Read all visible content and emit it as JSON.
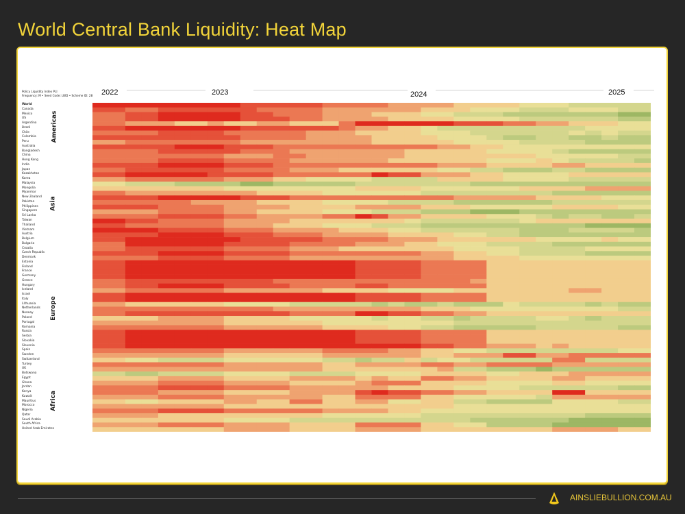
{
  "title": "World Central Bank Liquidity: Heat Map",
  "brand": "AINSLIEBULLION.COM.AU",
  "chart_data": {
    "type": "heatmap",
    "title": "World Central Bank Liquidity: Heat Map",
    "header_lines": [
      "Policy Liquidity Index PLI",
      "Frequency: M • Seed Code: LWD • Scheme ID: 28"
    ],
    "x_tick_labels": [
      "2022",
      "2023",
      "2024",
      "2025"
    ],
    "regions": [
      "Americas",
      "Asia",
      "Europe",
      "Africa"
    ],
    "color_scale": {
      "low": "#df2a1e",
      "mid": "#f4e49c",
      "high": "#7ea44a",
      "levels": "0 (red) to 9 (green)"
    },
    "rows": [
      {
        "label": "World",
        "v": "0000000001111122223333444455566666"
      },
      {
        "label": "Canada",
        "v": "1122111111222233333344455566655566"
      },
      {
        "label": "Mexico",
        "v": "2211000001122233344455666777777788"
      },
      {
        "label": "US",
        "v": "2211000001112233334444555566666677"
      },
      {
        "label": "Argentina",
        "v": "2233344344334442000000111223344455"
      },
      {
        "label": "Brazil",
        "v": "1100000001111112334456666666665555"
      },
      {
        "label": "Chile",
        "v": "2222111122222333444455566666656566"
      },
      {
        "label": "Colombia",
        "v": "1111111112222333344445556776677677"
      },
      {
        "label": "Peru",
        "v": "3322222223333333344444555566667777"
      },
      {
        "label": "Australia",
        "v": "1111100011122222222223344555555555"
      },
      {
        "label": "Bangladesh",
        "v": "2222111112223333333444445555677777"
      },
      {
        "label": "China",
        "v": "2222222233322333333444444445555566"
      },
      {
        "label": "Hong Kong",
        "v": "2222111122223333334444445554566667"
      },
      {
        "label": "India",
        "v": "1111000011122222222223334444334444"
      },
      {
        "label": "Japan",
        "v": "2211111122223334444445566777667777"
      },
      {
        "label": "Kazakhstan",
        "v": "1100000111122222201133344555544444"
      },
      {
        "label": "Korea",
        "v": "3322222233344555566664444555566666"
      },
      {
        "label": "Malaysia",
        "v": "5566677778877777666666677777777777"
      },
      {
        "label": "Mongolia",
        "v": "4444444455555555444455555544443333"
      },
      {
        "label": "Myanmar",
        "v": "2233333333444455555566666666777777"
      },
      {
        "label": "New Zealand",
        "v": "1111000001112222222222333334444555"
      },
      {
        "label": "Pakistan",
        "v": "2222223333444455556666777777666666"
      },
      {
        "label": "Philippines",
        "v": "1111222233334444333344455555444455"
      },
      {
        "label": "Singapore",
        "v": "3333222233444455566677788877777777"
      },
      {
        "label": "Sri Lanka",
        "v": "2222111122333322013344445556766776"
      },
      {
        "label": "Taiwan",
        "v": "0011222233334444444566666654444444"
      },
      {
        "label": "Thailand",
        "v": "1122222233344455566677777777778888"
      },
      {
        "label": "Vietnam",
        "v": "0000111122233334445566666677766667"
      },
      {
        "label": "Austria",
        "v": "1111000011122233334444556677777777"
      },
      {
        "label": "Belgium",
        "v": "1100000001111122223334444445555455"
      },
      {
        "label": "Bulgaria",
        "v": "2200000011112222333445556666777777"
      },
      {
        "label": "Croatia",
        "v": "2211111122223334444444555566665555"
      },
      {
        "label": "Czech Republic",
        "v": "1111000011112222222233445566667777"
      },
      {
        "label": "Denmark",
        "v": "2222111122223333333333444455555555"
      },
      {
        "label": "Estonia",
        "v": "1100000000000000111122224444444444"
      },
      {
        "label": "Finland",
        "v": "1100000000000000111122224444444444"
      },
      {
        "label": "France",
        "v": "1100000000000000111122224444444444"
      },
      {
        "label": "Germany",
        "v": "1100000000000000111122224444444444"
      },
      {
        "label": "Greece",
        "v": "2211111111122222222222234444444444"
      },
      {
        "label": "Hungary",
        "v": "2211000011112222112222224444444444"
      },
      {
        "label": "Iceland",
        "v": "3322222233333344445555444444433444"
      },
      {
        "label": "Israel",
        "v": "1100000000000000111122224444444444"
      },
      {
        "label": "Italy",
        "v": "1100000000000000111122224444444444"
      },
      {
        "label": "Lithuania",
        "v": "3344444455556666676776777566667677"
      },
      {
        "label": "Netherlands",
        "v": "2222222222233333333344455555555566"
      },
      {
        "label": "Norway",
        "v": "2211111111112222001122334444444444"
      },
      {
        "label": "Poland",
        "v": "4444333344445555565566766665567666"
      },
      {
        "label": "Portugal",
        "v": "3333333344444455555555666666666666"
      },
      {
        "label": "Romania",
        "v": "2222222233333344445566777776666677"
      },
      {
        "label": "Russia",
        "v": "1100000000000000111122224444444444"
      },
      {
        "label": "Serbia",
        "v": "1100000000000000111122224444444444"
      },
      {
        "label": "Slovakia",
        "v": "1100000000000000111122224444444444"
      },
      {
        "label": "Slovenia",
        "v": "1100000000000000000011223334344444"
      },
      {
        "label": "Spain",
        "v": "2222222233333322223344556666666655"
      },
      {
        "label": "Sweden",
        "v": "3333333344444433333344333113322222"
      },
      {
        "label": "Switzerland",
        "v": "4455666655555566766465566666226666"
      },
      {
        "label": "Turkey",
        "v": "2222222233333344333322332222333333"
      },
      {
        "label": "UK",
        "v": "3333333333333344444443667778777777"
      },
      {
        "label": "Botswana",
        "v": "6677666655556666555544445544433333"
      },
      {
        "label": "Egypt",
        "v": "4444333344443333434422334444334444"
      },
      {
        "label": "Ghana",
        "v": "3333222233334444322244445555445555"
      },
      {
        "label": "Jordan",
        "v": "2222111122223333334444555566666677"
      },
      {
        "label": "Kenya",
        "v": "2222333344443333101122334444004444"
      },
      {
        "label": "Kuwait",
        "v": "3333222233333344222244555556333333"
      },
      {
        "label": "Mauritius",
        "v": "4455444433442244335544667777555566"
      },
      {
        "label": "Morocco",
        "v": "3333333344444444444444555555555555"
      },
      {
        "label": "Nigeria",
        "v": "2222111122222233334455555555555555"
      },
      {
        "label": "Qatar",
        "v": "3333444444444455555566666666667777"
      },
      {
        "label": "Saudi Arabia",
        "v": "4444444455556666666666677777788888"
      },
      {
        "label": "South Africa",
        "v": "3333222233334444222244557777888888"
      },
      {
        "label": "United Arab Emirates",
        "v": "4444444433334444333344444444333344"
      }
    ]
  }
}
